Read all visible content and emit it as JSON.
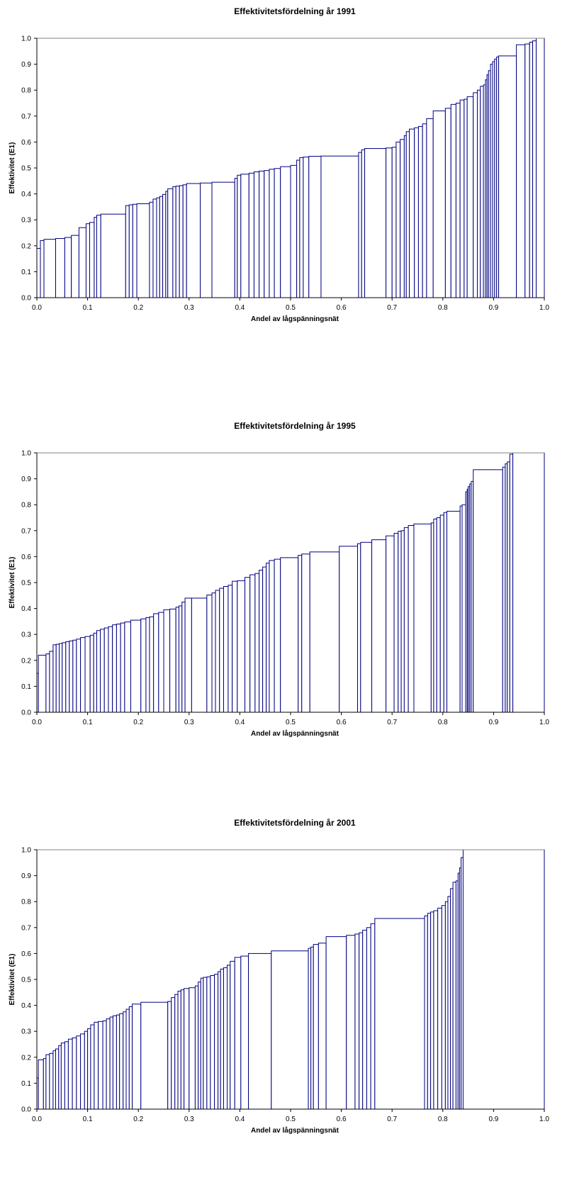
{
  "colors": {
    "bar_stroke": "#000080",
    "bar_fill": "#ffffff",
    "axis": "#000000",
    "top_border": "#808080"
  },
  "chart_data": [
    {
      "type": "bar",
      "title": "Effektivitetsfördelning år 1991",
      "xlabel": "Andel av lågspänningsnät",
      "ylabel": "Effektivitet (E1)",
      "xlim": [
        0,
        1
      ],
      "ylim": [
        0,
        1
      ],
      "xticks": [
        "0.0",
        "0.1",
        "0.2",
        "0.3",
        "0.4",
        "0.5",
        "0.6",
        "0.7",
        "0.8",
        "0.9",
        "1.0"
      ],
      "yticks": [
        "0.0",
        "0.1",
        "0.2",
        "0.3",
        "0.4",
        "0.5",
        "0.6",
        "0.7",
        "0.8",
        "0.9",
        "1.0"
      ],
      "grid": false,
      "steps": [
        [
          0.0,
          0.19
        ],
        [
          0.007,
          0.22
        ],
        [
          0.014,
          0.225
        ],
        [
          0.037,
          0.228
        ],
        [
          0.055,
          0.232
        ],
        [
          0.068,
          0.24
        ],
        [
          0.083,
          0.27
        ],
        [
          0.097,
          0.285
        ],
        [
          0.104,
          0.29
        ],
        [
          0.113,
          0.31
        ],
        [
          0.118,
          0.318
        ],
        [
          0.126,
          0.322
        ],
        [
          0.175,
          0.355
        ],
        [
          0.182,
          0.358
        ],
        [
          0.189,
          0.36
        ],
        [
          0.197,
          0.362
        ],
        [
          0.222,
          0.368
        ],
        [
          0.229,
          0.38
        ],
        [
          0.236,
          0.385
        ],
        [
          0.242,
          0.39
        ],
        [
          0.248,
          0.398
        ],
        [
          0.254,
          0.41
        ],
        [
          0.258,
          0.42
        ],
        [
          0.268,
          0.428
        ],
        [
          0.274,
          0.43
        ],
        [
          0.281,
          0.432
        ],
        [
          0.288,
          0.435
        ],
        [
          0.295,
          0.44
        ],
        [
          0.322,
          0.442
        ],
        [
          0.345,
          0.445
        ],
        [
          0.39,
          0.46
        ],
        [
          0.395,
          0.472
        ],
        [
          0.402,
          0.476
        ],
        [
          0.418,
          0.48
        ],
        [
          0.428,
          0.485
        ],
        [
          0.438,
          0.488
        ],
        [
          0.448,
          0.49
        ],
        [
          0.458,
          0.495
        ],
        [
          0.468,
          0.498
        ],
        [
          0.48,
          0.505
        ],
        [
          0.5,
          0.51
        ],
        [
          0.512,
          0.53
        ],
        [
          0.518,
          0.54
        ],
        [
          0.525,
          0.542
        ],
        [
          0.536,
          0.545
        ],
        [
          0.56,
          0.546
        ],
        [
          0.634,
          0.56
        ],
        [
          0.64,
          0.57
        ],
        [
          0.646,
          0.575
        ],
        [
          0.688,
          0.577
        ],
        [
          0.7,
          0.58
        ],
        [
          0.708,
          0.6
        ],
        [
          0.716,
          0.61
        ],
        [
          0.724,
          0.625
        ],
        [
          0.728,
          0.64
        ],
        [
          0.734,
          0.65
        ],
        [
          0.744,
          0.655
        ],
        [
          0.752,
          0.66
        ],
        [
          0.76,
          0.67
        ],
        [
          0.768,
          0.69
        ],
        [
          0.781,
          0.72
        ],
        [
          0.805,
          0.73
        ],
        [
          0.816,
          0.745
        ],
        [
          0.826,
          0.75
        ],
        [
          0.834,
          0.762
        ],
        [
          0.842,
          0.765
        ],
        [
          0.848,
          0.775
        ],
        [
          0.86,
          0.79
        ],
        [
          0.868,
          0.8
        ],
        [
          0.874,
          0.815
        ],
        [
          0.88,
          0.82
        ],
        [
          0.884,
          0.84
        ],
        [
          0.887,
          0.86
        ],
        [
          0.89,
          0.875
        ],
        [
          0.894,
          0.9
        ],
        [
          0.898,
          0.91
        ],
        [
          0.902,
          0.92
        ],
        [
          0.906,
          0.928
        ],
        [
          0.91,
          0.932
        ],
        [
          0.945,
          0.975
        ],
        [
          0.962,
          0.978
        ],
        [
          0.971,
          0.985
        ],
        [
          0.977,
          0.99
        ],
        [
          0.984,
          1.0
        ],
        [
          1.0,
          null
        ]
      ]
    },
    {
      "type": "bar",
      "title": "Effektivitetsfördelning år 1995",
      "xlabel": "Andel av lågspänningsnät",
      "ylabel": "Effektivitet (E1)",
      "xlim": [
        0,
        1
      ],
      "ylim": [
        0,
        1
      ],
      "xticks": [
        "0.0",
        "0.1",
        "0.2",
        "0.3",
        "0.4",
        "0.5",
        "0.6",
        "0.7",
        "0.8",
        "0.9",
        "1.0"
      ],
      "yticks": [
        "0.0",
        "0.1",
        "0.2",
        "0.3",
        "0.4",
        "0.5",
        "0.6",
        "0.7",
        "0.8",
        "0.9",
        "1.0"
      ],
      "grid": false,
      "steps": [
        [
          0.0,
          0.15
        ],
        [
          0.003,
          0.22
        ],
        [
          0.018,
          0.225
        ],
        [
          0.025,
          0.235
        ],
        [
          0.032,
          0.26
        ],
        [
          0.038,
          0.262
        ],
        [
          0.044,
          0.265
        ],
        [
          0.05,
          0.268
        ],
        [
          0.057,
          0.272
        ],
        [
          0.064,
          0.275
        ],
        [
          0.071,
          0.278
        ],
        [
          0.078,
          0.282
        ],
        [
          0.086,
          0.288
        ],
        [
          0.095,
          0.292
        ],
        [
          0.105,
          0.297
        ],
        [
          0.112,
          0.305
        ],
        [
          0.118,
          0.315
        ],
        [
          0.125,
          0.32
        ],
        [
          0.133,
          0.325
        ],
        [
          0.141,
          0.33
        ],
        [
          0.149,
          0.337
        ],
        [
          0.157,
          0.34
        ],
        [
          0.165,
          0.344
        ],
        [
          0.173,
          0.348
        ],
        [
          0.185,
          0.355
        ],
        [
          0.205,
          0.36
        ],
        [
          0.215,
          0.365
        ],
        [
          0.222,
          0.368
        ],
        [
          0.23,
          0.38
        ],
        [
          0.24,
          0.385
        ],
        [
          0.25,
          0.395
        ],
        [
          0.262,
          0.398
        ],
        [
          0.274,
          0.405
        ],
        [
          0.28,
          0.41
        ],
        [
          0.286,
          0.425
        ],
        [
          0.292,
          0.44
        ],
        [
          0.305,
          0.44
        ],
        [
          0.335,
          0.452
        ],
        [
          0.345,
          0.46
        ],
        [
          0.352,
          0.47
        ],
        [
          0.36,
          0.478
        ],
        [
          0.368,
          0.485
        ],
        [
          0.377,
          0.49
        ],
        [
          0.385,
          0.505
        ],
        [
          0.395,
          0.507
        ],
        [
          0.41,
          0.52
        ],
        [
          0.42,
          0.53
        ],
        [
          0.43,
          0.535
        ],
        [
          0.438,
          0.548
        ],
        [
          0.445,
          0.56
        ],
        [
          0.452,
          0.575
        ],
        [
          0.458,
          0.585
        ],
        [
          0.468,
          0.59
        ],
        [
          0.48,
          0.596
        ],
        [
          0.515,
          0.605
        ],
        [
          0.522,
          0.61
        ],
        [
          0.538,
          0.618
        ],
        [
          0.596,
          0.64
        ],
        [
          0.632,
          0.65
        ],
        [
          0.638,
          0.655
        ],
        [
          0.66,
          0.665
        ],
        [
          0.688,
          0.68
        ],
        [
          0.704,
          0.69
        ],
        [
          0.712,
          0.698
        ],
        [
          0.718,
          0.7
        ],
        [
          0.724,
          0.712
        ],
        [
          0.732,
          0.72
        ],
        [
          0.743,
          0.726
        ],
        [
          0.777,
          0.73
        ],
        [
          0.782,
          0.745
        ],
        [
          0.788,
          0.75
        ],
        [
          0.795,
          0.76
        ],
        [
          0.802,
          0.77
        ],
        [
          0.808,
          0.775
        ],
        [
          0.834,
          0.795
        ],
        [
          0.838,
          0.8
        ],
        [
          0.845,
          0.85
        ],
        [
          0.848,
          0.86
        ],
        [
          0.85,
          0.87
        ],
        [
          0.853,
          0.88
        ],
        [
          0.856,
          0.89
        ],
        [
          0.86,
          0.935
        ],
        [
          0.918,
          0.945
        ],
        [
          0.923,
          0.958
        ],
        [
          0.927,
          0.965
        ],
        [
          0.932,
          0.995
        ],
        [
          0.938,
          1.0
        ],
        [
          1.0,
          null
        ]
      ]
    },
    {
      "type": "bar",
      "title": "Effektivitetsfördelning år 2001",
      "xlabel": "Andel av lågspänningsnät",
      "ylabel": "Effektivitet (E1)",
      "xlim": [
        0,
        1
      ],
      "ylim": [
        0,
        1
      ],
      "xticks": [
        "0.0",
        "0.1",
        "0.2",
        "0.3",
        "0.4",
        "0.5",
        "0.6",
        "0.7",
        "0.8",
        "0.9",
        "1.0"
      ],
      "yticks": [
        "0.0",
        "0.1",
        "0.2",
        "0.3",
        "0.4",
        "0.5",
        "0.6",
        "0.7",
        "0.8",
        "0.9",
        "1.0"
      ],
      "grid": false,
      "steps": [
        [
          0.0,
          0.12
        ],
        [
          0.003,
          0.19
        ],
        [
          0.013,
          0.195
        ],
        [
          0.018,
          0.21
        ],
        [
          0.025,
          0.215
        ],
        [
          0.032,
          0.225
        ],
        [
          0.037,
          0.232
        ],
        [
          0.043,
          0.245
        ],
        [
          0.048,
          0.255
        ],
        [
          0.055,
          0.26
        ],
        [
          0.062,
          0.27
        ],
        [
          0.07,
          0.275
        ],
        [
          0.078,
          0.282
        ],
        [
          0.086,
          0.29
        ],
        [
          0.094,
          0.3
        ],
        [
          0.1,
          0.31
        ],
        [
          0.106,
          0.325
        ],
        [
          0.113,
          0.335
        ],
        [
          0.121,
          0.338
        ],
        [
          0.13,
          0.34
        ],
        [
          0.137,
          0.348
        ],
        [
          0.144,
          0.355
        ],
        [
          0.15,
          0.36
        ],
        [
          0.157,
          0.363
        ],
        [
          0.163,
          0.368
        ],
        [
          0.17,
          0.375
        ],
        [
          0.176,
          0.385
        ],
        [
          0.182,
          0.395
        ],
        [
          0.188,
          0.405
        ],
        [
          0.205,
          0.412
        ],
        [
          0.258,
          0.415
        ],
        [
          0.265,
          0.43
        ],
        [
          0.272,
          0.442
        ],
        [
          0.278,
          0.455
        ],
        [
          0.284,
          0.46
        ],
        [
          0.29,
          0.465
        ],
        [
          0.3,
          0.468
        ],
        [
          0.312,
          0.475
        ],
        [
          0.318,
          0.49
        ],
        [
          0.323,
          0.505
        ],
        [
          0.328,
          0.508
        ],
        [
          0.335,
          0.51
        ],
        [
          0.342,
          0.515
        ],
        [
          0.35,
          0.52
        ],
        [
          0.357,
          0.53
        ],
        [
          0.362,
          0.54
        ],
        [
          0.368,
          0.545
        ],
        [
          0.375,
          0.555
        ],
        [
          0.381,
          0.57
        ],
        [
          0.39,
          0.585
        ],
        [
          0.402,
          0.59
        ],
        [
          0.417,
          0.6
        ],
        [
          0.462,
          0.61
        ],
        [
          0.535,
          0.62
        ],
        [
          0.54,
          0.625
        ],
        [
          0.545,
          0.635
        ],
        [
          0.555,
          0.64
        ],
        [
          0.57,
          0.665
        ],
        [
          0.61,
          0.67
        ],
        [
          0.627,
          0.675
        ],
        [
          0.635,
          0.68
        ],
        [
          0.642,
          0.69
        ],
        [
          0.65,
          0.7
        ],
        [
          0.658,
          0.715
        ],
        [
          0.666,
          0.735
        ],
        [
          0.764,
          0.745
        ],
        [
          0.77,
          0.755
        ],
        [
          0.776,
          0.76
        ],
        [
          0.782,
          0.765
        ],
        [
          0.79,
          0.775
        ],
        [
          0.798,
          0.785
        ],
        [
          0.805,
          0.8
        ],
        [
          0.81,
          0.82
        ],
        [
          0.815,
          0.85
        ],
        [
          0.82,
          0.875
        ],
        [
          0.826,
          0.88
        ],
        [
          0.83,
          0.91
        ],
        [
          0.833,
          0.93
        ],
        [
          0.836,
          0.97
        ],
        [
          0.84,
          1.0
        ],
        [
          1.0,
          null
        ]
      ]
    }
  ]
}
